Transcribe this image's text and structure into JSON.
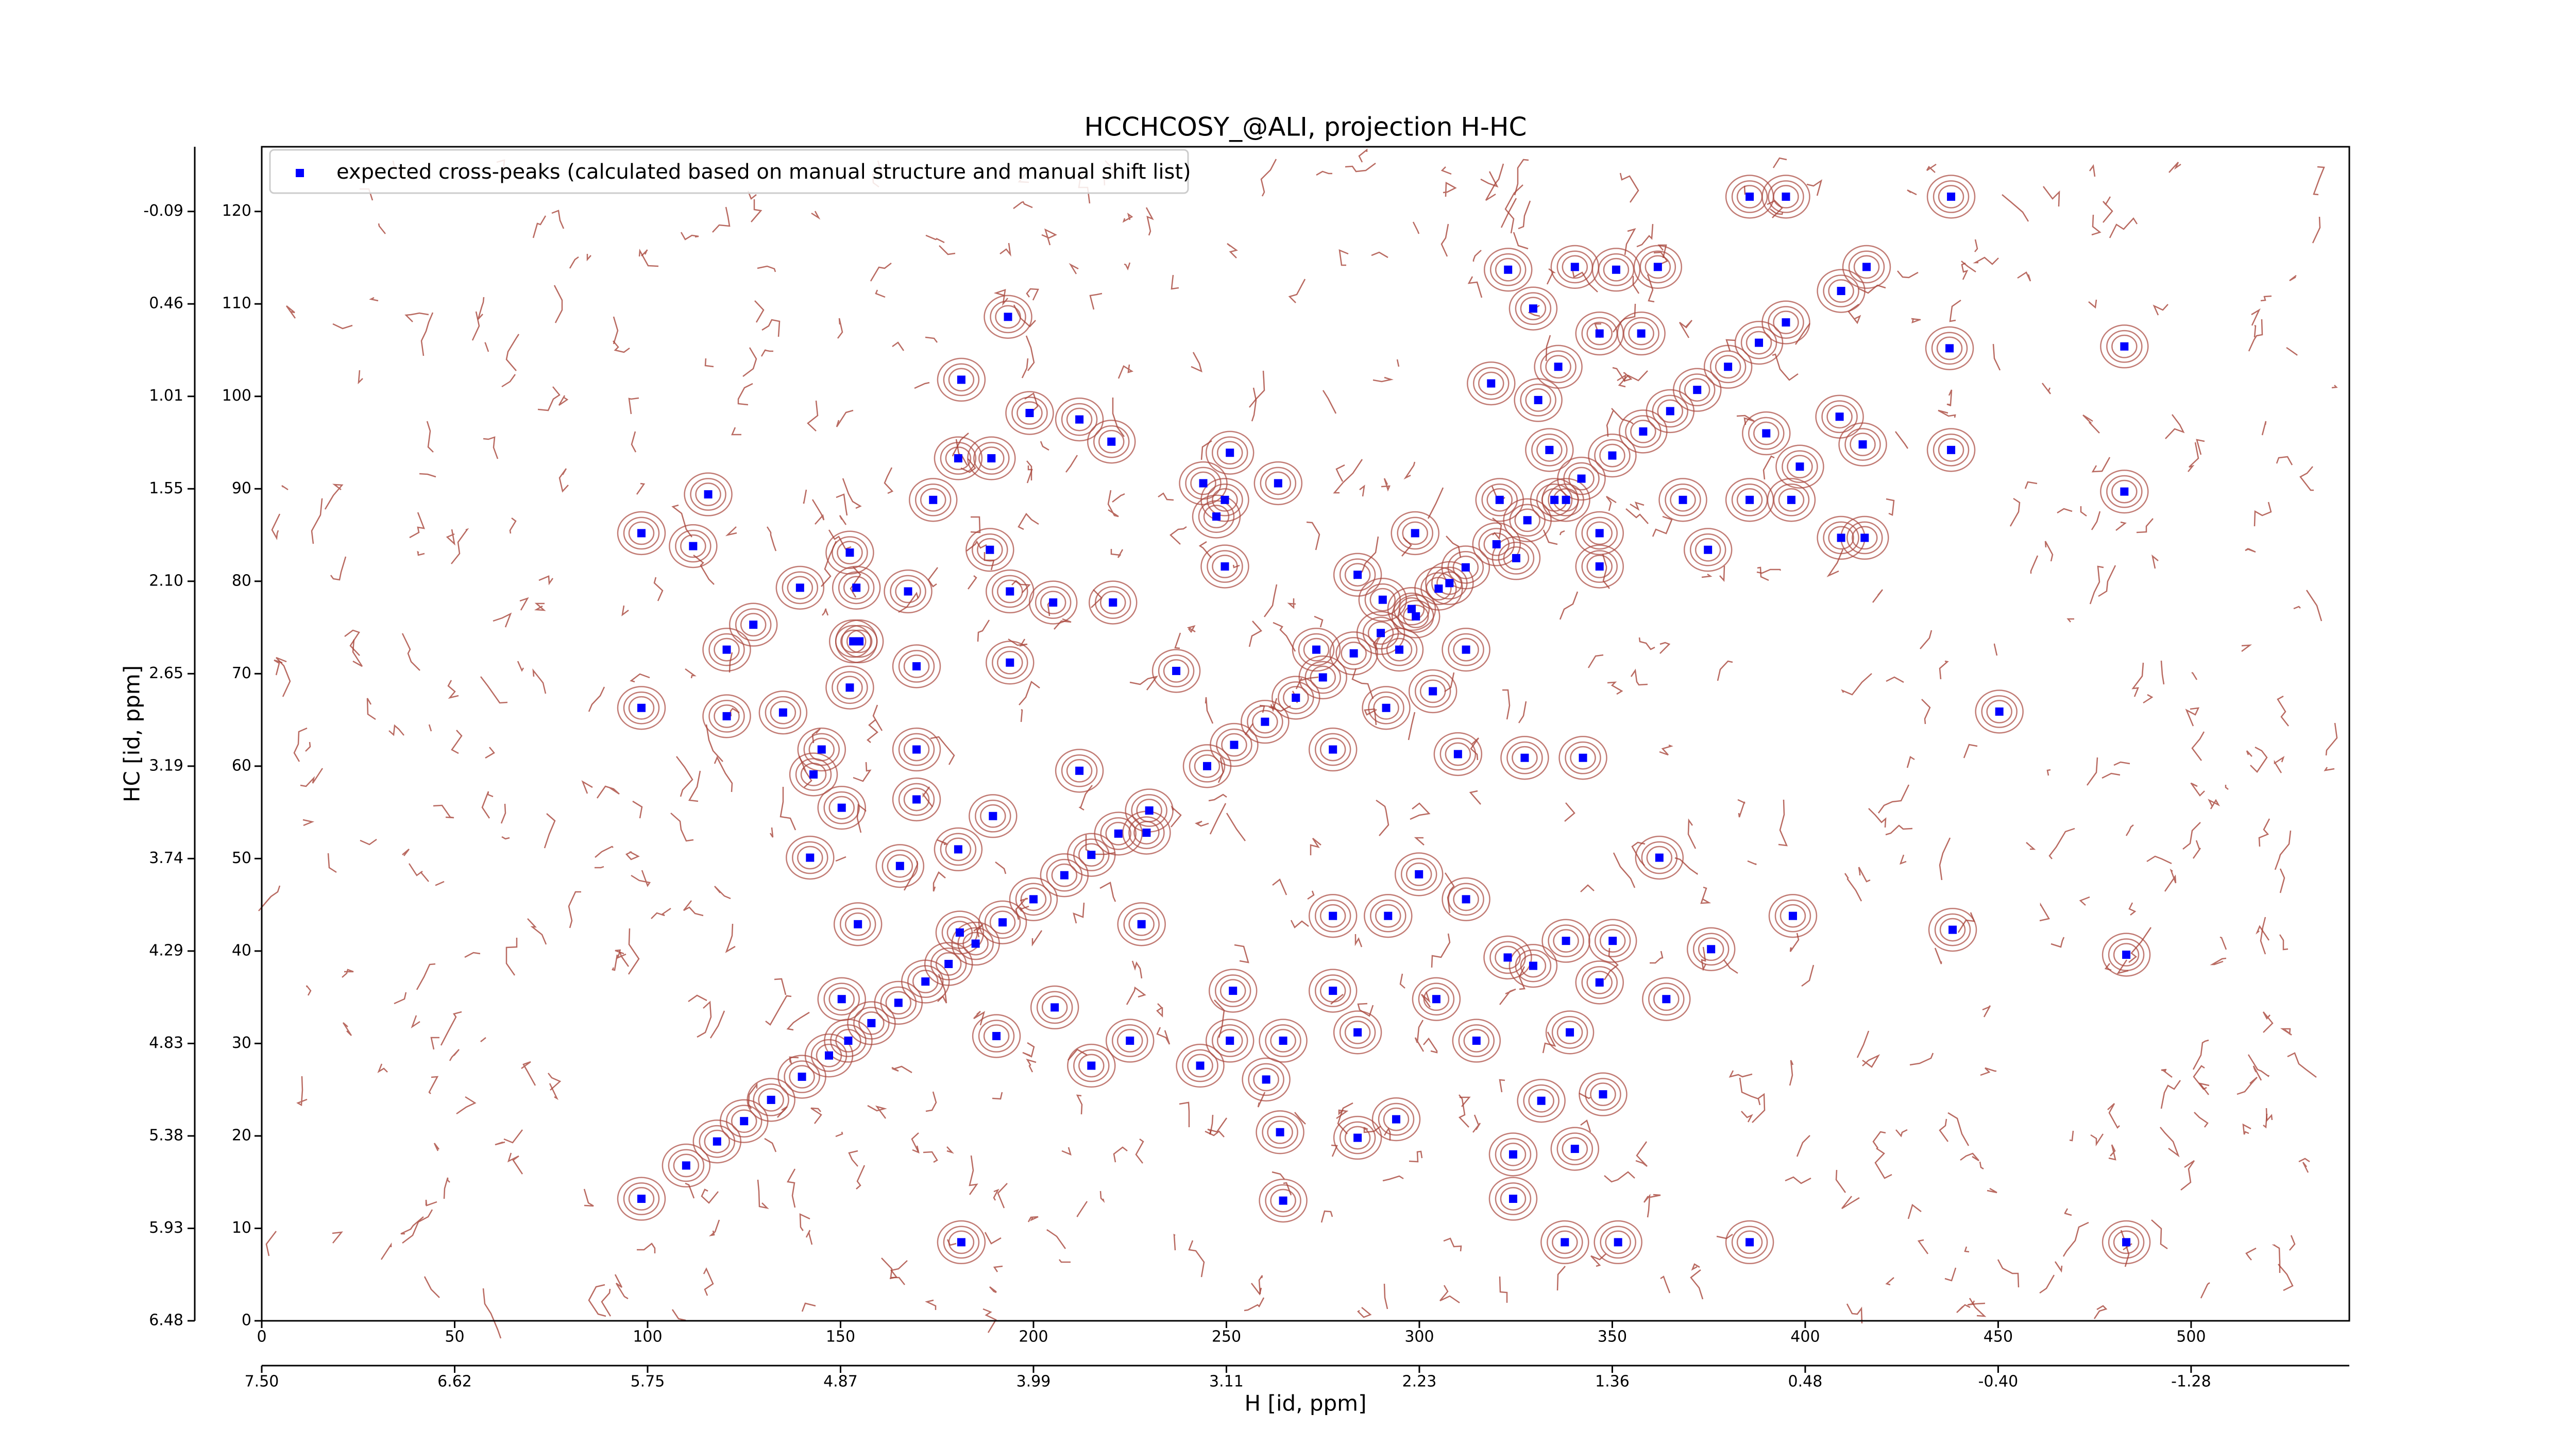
{
  "chart_data": {
    "type": "scatter",
    "title": "HCCHCOSY_@ALI, projection H-HC",
    "xlabel": "H [id, ppm]",
    "ylabel": "HC [id, ppm]",
    "xlim": [
      0,
      541
    ],
    "ylim": [
      0,
      127
    ],
    "xticks": [
      0,
      50,
      100,
      150,
      200,
      250,
      300,
      350,
      400,
      450,
      500
    ],
    "yticks": [
      0,
      10,
      20,
      30,
      40,
      50,
      60,
      70,
      80,
      90,
      100,
      110,
      120
    ],
    "x_ppm_ticks": [
      {
        "value": 0,
        "label": "7.50"
      },
      {
        "value": 50,
        "label": "6.62"
      },
      {
        "value": 100,
        "label": "5.75"
      },
      {
        "value": 150,
        "label": "4.87"
      },
      {
        "value": 200,
        "label": "3.99"
      },
      {
        "value": 250,
        "label": "3.11"
      },
      {
        "value": 300,
        "label": "2.23"
      },
      {
        "value": 350,
        "label": "1.36"
      },
      {
        "value": 400,
        "label": "0.48"
      },
      {
        "value": 450,
        "label": "-0.40"
      },
      {
        "value": 500,
        "label": "-1.28"
      }
    ],
    "y_ppm_ticks": [
      {
        "value": 0,
        "label": "6.48"
      },
      {
        "value": 10,
        "label": "5.93"
      },
      {
        "value": 20,
        "label": "5.38"
      },
      {
        "value": 30,
        "label": "4.83"
      },
      {
        "value": 40,
        "label": "4.29"
      },
      {
        "value": 50,
        "label": "3.74"
      },
      {
        "value": 60,
        "label": "3.19"
      },
      {
        "value": 70,
        "label": "2.65"
      },
      {
        "value": 80,
        "label": "2.10"
      },
      {
        "value": 90,
        "label": "1.55"
      },
      {
        "value": 100,
        "label": "1.01"
      },
      {
        "value": 110,
        "label": "0.46"
      },
      {
        "value": 120,
        "label": "-0.09"
      }
    ],
    "legend": "upper left",
    "x": [
      110,
      118,
      125,
      132,
      140,
      147,
      152,
      158,
      165,
      172,
      178,
      185,
      192,
      200,
      208,
      215,
      222,
      230,
      245,
      252,
      260,
      268,
      275,
      283,
      290,
      298,
      305,
      312,
      320,
      328,
      335,
      342,
      350,
      358,
      365,
      372,
      380,
      388,
      395,
      437.8,
      385.6,
      395,
      482.7,
      437.8,
      482.7,
      409.3,
      415.4,
      414.9,
      408.9,
      437.4,
      450.3,
      438.2,
      483.2,
      483.2,
      385.6,
      351.5,
      337.7,
      264.7,
      181.3,
      98.4,
      98.4,
      98.4,
      111.8,
      115.7,
      120.5,
      120.5,
      127.4,
      135.1,
      139.5,
      145.1,
      153.3,
      169.7,
      169.7,
      167.5,
      174,
      180.5,
      189.1,
      188.7,
      193.9,
      193.9,
      205.1,
      220.6,
      211.9,
      220.2,
      199,
      193.4,
      181.3,
      249.6,
      249.6,
      250.9,
      237,
      277.6,
      291.4,
      310,
      327.3,
      342.4,
      277.6,
      291.9,
      299.9,
      312.1,
      322.9,
      338,
      350.1,
      362.2,
      375.6,
      396.8,
      364,
      346.7,
      329.5,
      314.8,
      304.4,
      284,
      277.6,
      264.7,
      250.9,
      243.2,
      225,
      215,
      205.5,
      190.4,
      180.9,
      189.5,
      180.5,
      165.4,
      142.1,
      143,
      169.7,
      211.9,
      229.3,
      228,
      251.7,
      260.3,
      263.9,
      284,
      294,
      324.3,
      331.6,
      340.3,
      347.6,
      339,
      324.3,
      323,
      329.5,
      340.3,
      351,
      361.8,
      330.8,
      336,
      346.7,
      357.5,
      318.6,
      368.3,
      374.8,
      385.6,
      389.9,
      398.6,
      396.4,
      409.3,
      415.9,
      346.7,
      346.7,
      298.9,
      284,
      294.8,
      312.1,
      303.5,
      273.3,
      290.5,
      299.1,
      307.8,
      320.8,
      333.7,
      338,
      325.1,
      263.4,
      247.4,
      244,
      152.4,
      154.1,
      154.9,
      152.4,
      150.3,
      154.5,
      150.3
    ],
    "series": [
      {
        "name": "expected cross-peaks (calculated based on manual structure and manual shift list)",
        "color": "#0000ff",
        "values": [
          16.8,
          19.4,
          21.6,
          23.9,
          26.4,
          28.7,
          30.3,
          32.2,
          34.4,
          36.7,
          38.6,
          40.8,
          43.1,
          45.6,
          48.2,
          50.4,
          52.7,
          55.2,
          60.0,
          62.3,
          64.8,
          67.4,
          69.6,
          72.2,
          74.4,
          77.0,
          79.2,
          81.5,
          84.0,
          86.6,
          88.8,
          91.1,
          93.6,
          96.2,
          98.4,
          100.7,
          103.2,
          105.8,
          108.0,
          121.6,
          121.6,
          121.6,
          105.4,
          94.2,
          89.7,
          84.7,
          84.7,
          94.8,
          97.8,
          105.2,
          65.9,
          42.3,
          39.6,
          8.5,
          8.5,
          8.5,
          8.5,
          13,
          8.5,
          13.2,
          66.3,
          85.2,
          83.8,
          89.4,
          72.6,
          65.4,
          75.3,
          65.8,
          79.3,
          61.8,
          73.5,
          70.8,
          61.8,
          78.9,
          88.8,
          93.3,
          93.3,
          83.4,
          78.9,
          71.2,
          77.7,
          77.7,
          97.5,
          95.1,
          98.2,
          108.6,
          101.8,
          81.6,
          88.8,
          93.9,
          70.3,
          61.8,
          66.3,
          61.3,
          60.9,
          60.9,
          43.8,
          43.8,
          48.3,
          45.6,
          39.3,
          41.1,
          41.1,
          50.1,
          40.2,
          43.8,
          34.8,
          36.6,
          38.4,
          30.3,
          34.8,
          31.2,
          35.7,
          30.3,
          30.3,
          27.6,
          30.3,
          27.6,
          33.9,
          30.8,
          42,
          54.6,
          51,
          49.2,
          50.1,
          59.1,
          56.4,
          59.5,
          52.8,
          42.9,
          35.7,
          26.1,
          20.4,
          19.8,
          21.8,
          18,
          23.8,
          18.6,
          24.5,
          31.2,
          13.2,
          113.7,
          109.5,
          114,
          113.7,
          114,
          99.6,
          103.2,
          106.8,
          106.8,
          101.4,
          88.8,
          83.4,
          88.8,
          96,
          92.4,
          88.8,
          111.4,
          114,
          85.2,
          81.6,
          85.2,
          80.7,
          72.6,
          72.6,
          68.1,
          72.6,
          78,
          76.2,
          79.8,
          88.8,
          94.2,
          88.8,
          82.5,
          90.6,
          87,
          90.6,
          83.1,
          79.3,
          73.5,
          68.5,
          55.5,
          42.9,
          34.8
        ]
      }
    ]
  }
}
